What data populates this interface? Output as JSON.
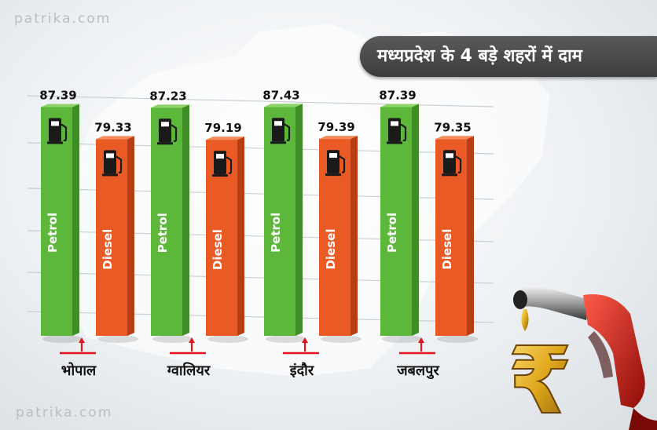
{
  "watermark": "patrika.com",
  "title": "मध्यप्रदेश के 4 बड़े शहरों में दाम",
  "colors": {
    "petrol": "#5cb73a",
    "petrol_side": "#3f8e25",
    "petrol_top": "#8fd46a",
    "diesel": "#ea5a24",
    "diesel_side": "#b93d12",
    "diesel_top": "#f58a5a",
    "marker": "#e3141b",
    "title_bg": "#4a4a4a"
  },
  "icons": {
    "bar_icon": "fuel-pump-icon",
    "decor": "fuel-nozzle-rupee-icon"
  },
  "chart_data": {
    "type": "bar",
    "categories": [
      "भोपाल",
      "ग्वालियर",
      "इंदौर",
      "जबलपुर"
    ],
    "series": [
      {
        "name": "Petrol",
        "values": [
          87.39,
          87.23,
          87.43,
          87.39
        ]
      },
      {
        "name": "Diesel",
        "values": [
          79.33,
          79.19,
          79.39,
          79.35
        ]
      }
    ],
    "value_labels": {
      "Petrol": [
        "87.39",
        "87.23",
        "87.43",
        "87.39"
      ],
      "Diesel": [
        "79.33",
        "79.19",
        "79.39",
        "79.35"
      ]
    },
    "title": "मध्यप्रदेश के 4 बड़े शहरों में दाम",
    "xlabel": "",
    "ylabel": "",
    "grid": true,
    "legend": "none"
  }
}
